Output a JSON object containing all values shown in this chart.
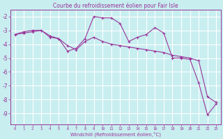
{
  "title": "Courbe du refroidissement éolien pour Fair Isle",
  "xlabel": "Windchill (Refroidissement éolien,°C)",
  "background_color": "#c8eef0",
  "grid_color": "#ffffff",
  "line_color": "#993399",
  "x_hours": [
    0,
    1,
    2,
    3,
    4,
    5,
    6,
    7,
    8,
    9,
    10,
    11,
    12,
    13,
    14,
    15,
    16,
    17,
    18,
    19,
    20,
    21,
    22,
    23
  ],
  "series1": [
    -3.3,
    -3.1,
    -3.0,
    -3.0,
    -3.5,
    -3.6,
    -4.5,
    -4.3,
    -3.6,
    -2.0,
    -2.1,
    -2.1,
    -2.5,
    -3.8,
    -3.5,
    -3.3,
    -2.8,
    -3.2,
    -5.0,
    -5.0,
    -5.1,
    -6.8,
    -9.1,
    -8.3
  ],
  "series2": [
    -3.3,
    -3.2,
    -3.1,
    -3.0,
    -3.4,
    -3.6,
    -4.1,
    -4.4,
    -3.8,
    -3.5,
    -3.8,
    -4.0,
    -4.1,
    -4.2,
    -4.3,
    -4.4,
    -4.5,
    -4.6,
    -4.8,
    -4.9,
    -5.0,
    -5.2,
    -7.8,
    -8.2
  ],
  "ylim": [
    -9.8,
    -1.5
  ],
  "xlim": [
    -0.5,
    23.5
  ],
  "yticks": [
    -9,
    -8,
    -7,
    -6,
    -5,
    -4,
    -3,
    -2
  ],
  "xticks": [
    0,
    1,
    2,
    3,
    4,
    5,
    6,
    7,
    8,
    9,
    10,
    11,
    12,
    13,
    14,
    15,
    16,
    17,
    18,
    19,
    20,
    21,
    22,
    23
  ]
}
